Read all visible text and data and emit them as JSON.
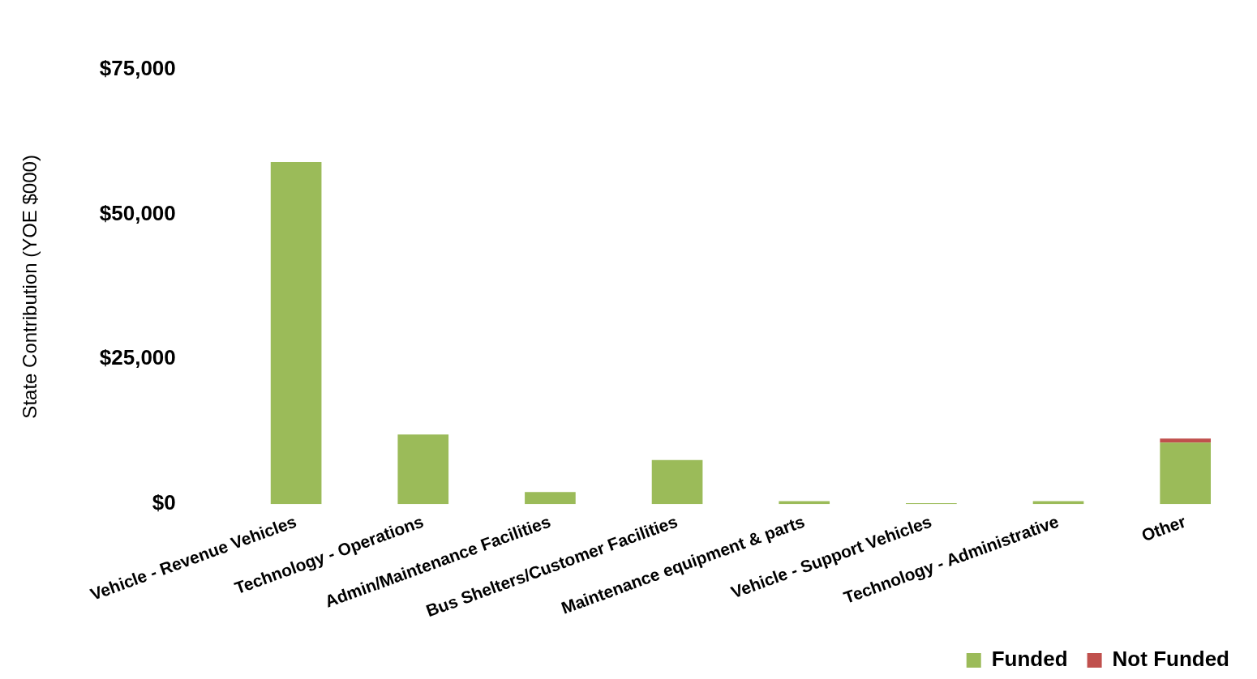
{
  "chart_data": {
    "type": "bar",
    "stacked": true,
    "ylabel": "State Contribution (YOE $000)",
    "categories": [
      "Vehicle - Revenue Vehicles",
      "Technology - Operations",
      "Admin/Maintenance Facilities",
      "Bus Shelters/Customer Facilities",
      "Maintenance equipment & parts",
      "Vehicle - Support Vehicles",
      "Technology - Administrative",
      "Other"
    ],
    "series": [
      {
        "name": "Funded",
        "color": "#9bbb59",
        "values": [
          59000,
          12000,
          2100,
          7600,
          500,
          150,
          500,
          10600
        ]
      },
      {
        "name": "Not Funded",
        "color": "#c0504d",
        "values": [
          0,
          0,
          0,
          0,
          0,
          0,
          0,
          700
        ]
      }
    ],
    "ylim": [
      0,
      75000
    ],
    "yticks": [
      {
        "value": 0,
        "label": "$0"
      },
      {
        "value": 25000,
        "label": "$25,000"
      },
      {
        "value": 50000,
        "label": "$50,000"
      },
      {
        "value": 75000,
        "label": "$75,000"
      }
    ],
    "grid": false,
    "legend": "bottom right"
  }
}
